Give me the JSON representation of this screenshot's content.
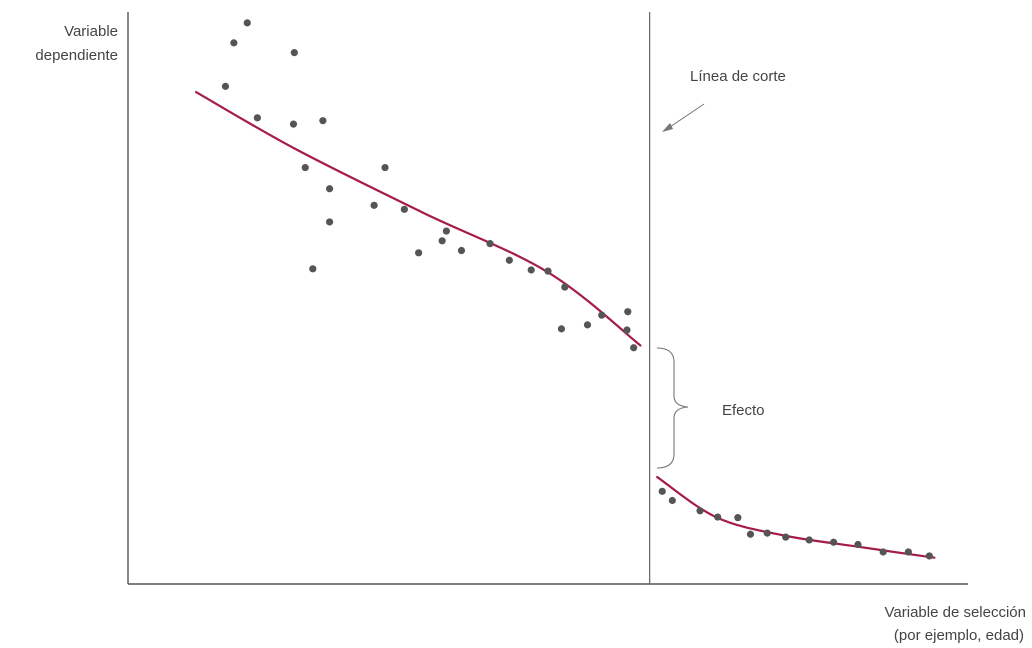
{
  "chart_data": {
    "type": "scatter",
    "title": "",
    "ylabel_lines": [
      "Variable",
      "dependiente"
    ],
    "xlabel_lines": [
      "Variable de selección",
      "(por ejemplo, edad)"
    ],
    "annotations": {
      "cutoff_label": "Línea de corte",
      "effect_label": "Efecto"
    },
    "x_range": [
      0,
      100
    ],
    "y_range": [
      0,
      100
    ],
    "cutoff_x": 62.1,
    "grid": false,
    "legend": "none",
    "series": [
      {
        "points": [
          [
            11.6,
            87.0
          ],
          [
            12.6,
            94.6
          ],
          [
            14.2,
            98.1
          ],
          [
            15.4,
            81.5
          ],
          [
            19.8,
            92.9
          ],
          [
            19.7,
            80.4
          ],
          [
            23.2,
            81.0
          ],
          [
            24.0,
            69.1
          ],
          [
            21.1,
            72.8
          ],
          [
            24.0,
            63.3
          ],
          [
            22.0,
            55.1
          ],
          [
            29.3,
            66.2
          ],
          [
            30.6,
            72.8
          ],
          [
            32.9,
            65.5
          ],
          [
            34.6,
            57.9
          ],
          [
            37.9,
            61.7
          ],
          [
            37.4,
            60.0
          ],
          [
            39.7,
            58.3
          ],
          [
            43.1,
            59.5
          ],
          [
            45.4,
            56.6
          ],
          [
            48.0,
            54.9
          ],
          [
            50.0,
            54.7
          ],
          [
            52.0,
            51.9
          ],
          [
            51.6,
            44.6
          ],
          [
            54.7,
            45.3
          ],
          [
            56.4,
            47.0
          ],
          [
            59.5,
            47.6
          ],
          [
            59.4,
            44.4
          ],
          [
            60.2,
            41.3
          ]
        ],
        "fit": [
          [
            8.1,
            86.0
          ],
          [
            20.0,
            76.0
          ],
          [
            35.0,
            65.0
          ],
          [
            50.0,
            54.5
          ],
          [
            61.0,
            41.7
          ]
        ]
      },
      {
        "points": [
          [
            63.6,
            16.2
          ],
          [
            64.8,
            14.6
          ],
          [
            68.1,
            12.8
          ],
          [
            70.2,
            11.7
          ],
          [
            72.6,
            11.6
          ],
          [
            74.1,
            8.7
          ],
          [
            76.1,
            8.9
          ],
          [
            78.3,
            8.2
          ],
          [
            81.1,
            7.7
          ],
          [
            84.0,
            7.3
          ],
          [
            86.9,
            6.9
          ],
          [
            89.9,
            5.6
          ],
          [
            92.9,
            5.6
          ],
          [
            95.4,
            4.9
          ]
        ],
        "fit": [
          [
            63.0,
            18.7
          ],
          [
            70.0,
            11.7
          ],
          [
            78.0,
            8.5
          ],
          [
            87.0,
            6.5
          ],
          [
            96.0,
            4.6
          ]
        ]
      }
    ],
    "colors": {
      "points": "#555555",
      "fit": "#a51c45",
      "axes": "#555555",
      "cutoff": "#666666",
      "brace": "#777777",
      "arrow": "#777777"
    }
  }
}
